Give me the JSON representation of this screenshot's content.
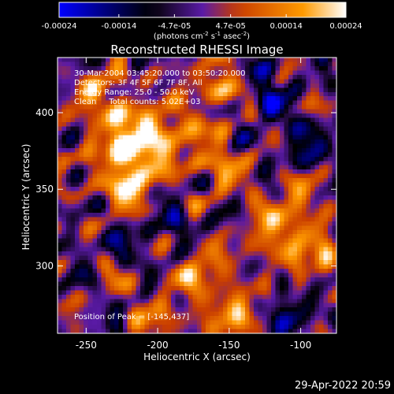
{
  "colorbar": {
    "ticks": [
      "-0.00024",
      "-0.00014",
      "-4.7e-05",
      "4.7e-05",
      "0.00014",
      "0.00024"
    ],
    "tick_values": [
      -0.00024,
      -0.00014,
      -4.7e-05,
      4.7e-05,
      0.00014,
      0.00024
    ],
    "range": [
      -0.00024,
      0.00024
    ],
    "units_pre": "(photons cm",
    "units_sup1": "-2",
    "units_mid": " s",
    "units_sup2": "-1",
    "units_post": " asec",
    "units_sup3": "-2",
    "units_end": ")",
    "colors": [
      "#0000ff",
      "#000000",
      "#5a1aa6",
      "#c83c00",
      "#ff9a00",
      "#ffffff"
    ]
  },
  "chart_data": {
    "type": "heatmap",
    "title": "Reconstructed RHESSI Image",
    "xlabel": "Heliocentric X (arcsec)",
    "ylabel": "Heliocentric Y (arcsec)",
    "xlim": [
      -270,
      -75
    ],
    "ylim": [
      256,
      436
    ],
    "xticks": [
      -250,
      -200,
      -150,
      -100
    ],
    "yticks": [
      300,
      350,
      400
    ],
    "peak": {
      "x": -145,
      "y": 437
    },
    "hotspots": [
      {
        "x": -222,
        "y": 382,
        "value": 0.00024
      },
      {
        "x": -218,
        "y": 355,
        "value": 0.00022
      },
      {
        "x": -240,
        "y": 410,
        "value": 0.00016
      },
      {
        "x": -195,
        "y": 385,
        "value": 0.00018
      },
      {
        "x": -155,
        "y": 418,
        "value": 0.00017
      },
      {
        "x": -160,
        "y": 365,
        "value": 0.00012
      },
      {
        "x": -170,
        "y": 300,
        "value": 0.00015
      },
      {
        "x": -120,
        "y": 320,
        "value": 0.00013
      },
      {
        "x": -90,
        "y": 310,
        "value": 0.00012
      },
      {
        "x": -100,
        "y": 345,
        "value": 0.00011
      },
      {
        "x": -145,
        "y": 270,
        "value": 0.00016
      },
      {
        "x": -200,
        "y": 262,
        "value": 0.0001
      },
      {
        "x": -230,
        "y": 295,
        "value": 9e-05
      }
    ],
    "coldspots": [
      {
        "x": -125,
        "y": 415,
        "value": -0.00012
      },
      {
        "x": -95,
        "y": 380,
        "value": -9e-05
      },
      {
        "x": -225,
        "y": 310,
        "value": -0.00011
      },
      {
        "x": -105,
        "y": 265,
        "value": -0.0001
      },
      {
        "x": -190,
        "y": 325,
        "value": -8e-05
      }
    ]
  },
  "annotation": {
    "line1": "30-Mar-2004 03:45:20.000 to 03:50:20.000",
    "line2": "Detectors: 3F 4F 5F 6F 7F 8F, All",
    "line3": "Energy Range: 25.0 - 50.0 keV",
    "line4": "Clean     Total counts: 5.02E+03",
    "peak_label": "Position of Peak = [-145,437]"
  },
  "timestamp": "29-Apr-2022 20:59"
}
